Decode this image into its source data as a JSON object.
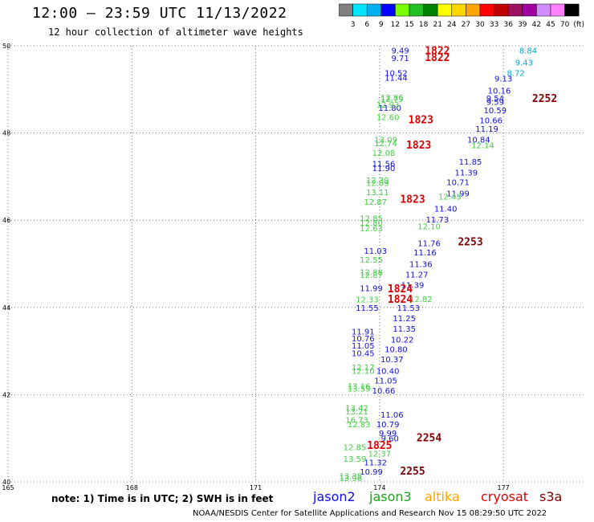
{
  "title": "12:00 – 23:59 UTC 11/13/2022",
  "subtitle": "12 hour collection of altimeter wave heights",
  "colorbar": {
    "colors": [
      "#7f7f7f",
      "#00e5ff",
      "#00b0f0",
      "#0000ff",
      "#7cfc00",
      "#22c022",
      "#008000",
      "#ffff00",
      "#ffd700",
      "#ffa500",
      "#ff0000",
      "#c00000",
      "#a01060",
      "#a000a0",
      "#d38cff",
      "#ff80ff",
      "#000000"
    ],
    "labels": [
      "3",
      "6",
      "9",
      "12",
      "15",
      "18",
      "21",
      "24",
      "27",
      "30",
      "33",
      "36",
      "39",
      "42",
      "45",
      "70",
      "(ft)"
    ]
  },
  "note": "note: 1) Time is in UTC; 2) SWH is in feet",
  "legend": [
    {
      "label": "jason2",
      "color": "#1010e0"
    },
    {
      "label": "jason3",
      "color": "#20a020"
    },
    {
      "label": "altika",
      "color": "#ffa500"
    },
    {
      "label": "cryosat",
      "color": "#e00000"
    },
    {
      "label": "s3a",
      "color": "#800000"
    }
  ],
  "footer": "NOAA/NESDIS Center for Satellite Applications and Research   Nov 15 08:29:50 UTC 2022",
  "chart_data": {
    "type": "scatter",
    "xlim": [
      165,
      179
    ],
    "ylim": [
      40,
      50
    ],
    "x_ticks": [
      "165",
      "168",
      "171",
      "174",
      "177"
    ],
    "y_ticks": [
      "40",
      "42",
      "44",
      "46",
      "48",
      "50"
    ],
    "grid": true,
    "series": [
      {
        "name": "jason2",
        "color": "#1010e0",
        "points": [
          {
            "x": 174.5,
            "y": 49.9,
            "label": "9.49"
          },
          {
            "x": 174.5,
            "y": 49.72,
            "label": "9.71"
          },
          {
            "x": 174.4,
            "y": 49.38,
            "label": "10.52"
          },
          {
            "x": 174.4,
            "y": 49.27,
            "label": "11.44"
          },
          {
            "x": 174.25,
            "y": 48.58,
            "label": "11.80"
          },
          {
            "x": 174.1,
            "y": 47.3,
            "label": "11.56"
          },
          {
            "x": 174.1,
            "y": 47.2,
            "label": "11.90"
          },
          {
            "x": 173.9,
            "y": 45.3,
            "label": "11.03"
          },
          {
            "x": 173.8,
            "y": 44.45,
            "label": "11.99"
          },
          {
            "x": 173.7,
            "y": 44.0,
            "label": "11.55"
          },
          {
            "x": 173.6,
            "y": 43.45,
            "label": "11.91"
          },
          {
            "x": 173.6,
            "y": 43.3,
            "label": "10.76"
          },
          {
            "x": 173.6,
            "y": 43.13,
            "label": "11.05"
          },
          {
            "x": 173.6,
            "y": 42.96,
            "label": "10.45"
          },
          {
            "x": 174.25,
            "y": 41.0,
            "label": "9.60"
          },
          {
            "x": 174.3,
            "y": 41.55,
            "label": "11.06"
          },
          {
            "x": 174.2,
            "y": 41.33,
            "label": "10.79"
          },
          {
            "x": 174.2,
            "y": 41.12,
            "label": "9.99"
          },
          {
            "x": 173.9,
            "y": 40.45,
            "label": "11.32"
          },
          {
            "x": 173.8,
            "y": 40.24,
            "label": "10.99"
          },
          {
            "x": 177.0,
            "y": 49.25,
            "label": "9.13"
          },
          {
            "x": 176.9,
            "y": 48.98,
            "label": "10.16"
          },
          {
            "x": 176.8,
            "y": 48.8,
            "label": "9.54"
          },
          {
            "x": 176.8,
            "y": 48.72,
            "label": "9.59"
          },
          {
            "x": 176.8,
            "y": 48.53,
            "label": "10.59"
          },
          {
            "x": 176.7,
            "y": 48.3,
            "label": "10.66"
          },
          {
            "x": 176.6,
            "y": 48.1,
            "label": "11.19"
          },
          {
            "x": 176.4,
            "y": 47.85,
            "label": "10.84"
          },
          {
            "x": 176.2,
            "y": 47.35,
            "label": "11.85"
          },
          {
            "x": 176.1,
            "y": 47.1,
            "label": "11.39"
          },
          {
            "x": 175.9,
            "y": 46.88,
            "label": "10.71"
          },
          {
            "x": 175.9,
            "y": 46.62,
            "label": "11.99"
          },
          {
            "x": 175.6,
            "y": 46.27,
            "label": "11.40"
          },
          {
            "x": 175.4,
            "y": 46.02,
            "label": "11.73"
          },
          {
            "x": 175.2,
            "y": 45.48,
            "label": "11.76"
          },
          {
            "x": 175.1,
            "y": 45.27,
            "label": "11.16"
          },
          {
            "x": 175.0,
            "y": 45.0,
            "label": "11.36"
          },
          {
            "x": 174.9,
            "y": 44.76,
            "label": "11.27"
          },
          {
            "x": 174.8,
            "y": 44.52,
            "label": "11.39"
          },
          {
            "x": 174.7,
            "y": 44.0,
            "label": "11.53"
          },
          {
            "x": 174.6,
            "y": 43.76,
            "label": "11.25"
          },
          {
            "x": 174.6,
            "y": 43.52,
            "label": "11.35"
          },
          {
            "x": 174.55,
            "y": 43.27,
            "label": "10.22"
          },
          {
            "x": 174.4,
            "y": 43.05,
            "label": "10.80"
          },
          {
            "x": 174.3,
            "y": 42.82,
            "label": "10.37"
          },
          {
            "x": 174.2,
            "y": 42.55,
            "label": "10.40"
          },
          {
            "x": 174.15,
            "y": 42.33,
            "label": "11.05"
          },
          {
            "x": 174.1,
            "y": 42.1,
            "label": "10.66"
          }
        ]
      },
      {
        "name": "jason3",
        "color": "#40d040",
        "points": [
          {
            "x": 174.3,
            "y": 48.82,
            "label": "12.86"
          },
          {
            "x": 174.3,
            "y": 48.78,
            "label": "12.79"
          },
          {
            "x": 174.2,
            "y": 48.66,
            "label": "12.93"
          },
          {
            "x": 174.2,
            "y": 48.37,
            "label": "12.60"
          },
          {
            "x": 174.15,
            "y": 47.85,
            "label": "13.09"
          },
          {
            "x": 174.15,
            "y": 47.77,
            "label": "12.74"
          },
          {
            "x": 174.1,
            "y": 47.55,
            "label": "12.08"
          },
          {
            "x": 173.95,
            "y": 46.92,
            "label": "12.39"
          },
          {
            "x": 173.95,
            "y": 46.86,
            "label": "12.09"
          },
          {
            "x": 173.95,
            "y": 46.65,
            "label": "13.11"
          },
          {
            "x": 173.9,
            "y": 46.43,
            "label": "12.87"
          },
          {
            "x": 173.8,
            "y": 46.05,
            "label": "12.85"
          },
          {
            "x": 173.8,
            "y": 45.95,
            "label": "12.80"
          },
          {
            "x": 173.8,
            "y": 45.82,
            "label": "12.63"
          },
          {
            "x": 173.8,
            "y": 45.1,
            "label": "12.55"
          },
          {
            "x": 173.8,
            "y": 44.82,
            "label": "12.88"
          },
          {
            "x": 173.8,
            "y": 44.75,
            "label": "12.87"
          },
          {
            "x": 173.7,
            "y": 44.19,
            "label": "12.33"
          },
          {
            "x": 173.6,
            "y": 42.63,
            "label": "12.17"
          },
          {
            "x": 173.6,
            "y": 42.55,
            "label": "12.10"
          },
          {
            "x": 173.5,
            "y": 42.2,
            "label": "13.16"
          },
          {
            "x": 173.5,
            "y": 42.15,
            "label": "13.59"
          },
          {
            "x": 173.45,
            "y": 41.7,
            "label": "13.42"
          },
          {
            "x": 173.45,
            "y": 41.62,
            "label": "13.21"
          },
          {
            "x": 173.45,
            "y": 41.43,
            "label": "16.73"
          },
          {
            "x": 173.5,
            "y": 41.33,
            "label": "12.83"
          },
          {
            "x": 173.4,
            "y": 40.8,
            "label": "12.85"
          },
          {
            "x": 173.4,
            "y": 40.53,
            "label": "13.59"
          },
          {
            "x": 174.0,
            "y": 40.65,
            "label": "12.37"
          },
          {
            "x": 173.3,
            "y": 40.14,
            "label": "13.35"
          },
          {
            "x": 173.3,
            "y": 40.09,
            "label": "13.96"
          },
          {
            "x": 175.2,
            "y": 45.87,
            "label": "12.10"
          },
          {
            "x": 175.0,
            "y": 44.2,
            "label": "12.82"
          },
          {
            "x": 175.7,
            "y": 46.55,
            "label": "12.43"
          },
          {
            "x": 176.5,
            "y": 47.73,
            "label": "12.14"
          }
        ]
      },
      {
        "name": "altika",
        "color": "#00a8d8",
        "points": [
          {
            "x": 177.6,
            "y": 49.9,
            "label": "8.84"
          },
          {
            "x": 177.5,
            "y": 49.62,
            "label": "9.43"
          },
          {
            "x": 177.3,
            "y": 49.38,
            "label": "8.72"
          }
        ]
      },
      {
        "name": "cryosat",
        "color": "#e00000",
        "points": [
          {
            "x": 175.4,
            "y": 49.88,
            "label": "1822"
          },
          {
            "x": 175.4,
            "y": 49.72,
            "label": "1822"
          },
          {
            "x": 175.0,
            "y": 48.3,
            "label": "1823"
          },
          {
            "x": 174.95,
            "y": 47.72,
            "label": "1823"
          },
          {
            "x": 174.8,
            "y": 46.47,
            "label": "1823"
          },
          {
            "x": 174.5,
            "y": 44.42,
            "label": "1824"
          },
          {
            "x": 174.5,
            "y": 44.18,
            "label": "1824"
          },
          {
            "x": 174.0,
            "y": 40.83,
            "label": "1825"
          }
        ]
      },
      {
        "name": "s3a",
        "color": "#800000",
        "points": [
          {
            "x": 178.0,
            "y": 48.78,
            "label": "2252"
          },
          {
            "x": 176.2,
            "y": 45.5,
            "label": "2253"
          },
          {
            "x": 175.2,
            "y": 41.0,
            "label": "2254"
          },
          {
            "x": 174.8,
            "y": 40.24,
            "label": "2255"
          }
        ]
      }
    ]
  }
}
